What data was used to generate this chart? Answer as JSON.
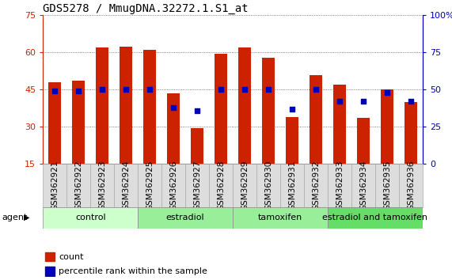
{
  "title": "GDS5278 / MmugDNA.32272.1.S1_at",
  "samples": [
    "GSM362921",
    "GSM362922",
    "GSM362923",
    "GSM362924",
    "GSM362925",
    "GSM362926",
    "GSM362927",
    "GSM362928",
    "GSM362929",
    "GSM362930",
    "GSM362931",
    "GSM362932",
    "GSM362933",
    "GSM362934",
    "GSM362935",
    "GSM362936"
  ],
  "count_values": [
    48.0,
    48.5,
    62.0,
    62.5,
    61.0,
    43.5,
    29.5,
    59.5,
    62.0,
    58.0,
    34.0,
    51.0,
    47.0,
    33.5,
    45.0,
    40.0
  ],
  "percentile_values": [
    49,
    49,
    50,
    50,
    50,
    38,
    36,
    50,
    50,
    50,
    37,
    50,
    42,
    42,
    48,
    42
  ],
  "groups": [
    {
      "label": "control",
      "start": 0,
      "end": 3,
      "color": "#ccffcc"
    },
    {
      "label": "estradiol",
      "start": 4,
      "end": 7,
      "color": "#99ee99"
    },
    {
      "label": "tamoxifen",
      "start": 8,
      "end": 11,
      "color": "#99ee99"
    },
    {
      "label": "estradiol and tamoxifen",
      "start": 12,
      "end": 15,
      "color": "#66dd66"
    }
  ],
  "ymin": 15,
  "ymax": 75,
  "yticks_left": [
    15,
    30,
    45,
    60,
    75
  ],
  "yticks_right_vals": [
    0,
    25,
    50,
    75,
    100
  ],
  "yticks_right_labels": [
    "0",
    "25",
    "50",
    "75",
    "100%"
  ],
  "bar_color": "#cc2200",
  "dot_color": "#0000bb",
  "bar_width": 0.55,
  "dot_size": 22,
  "background_color": "#ffffff",
  "left_axis_color": "#cc2200",
  "right_axis_color": "#0000bb",
  "grid_color": "#555555",
  "title_fontsize": 10,
  "axis_fontsize": 8,
  "tick_label_fontsize": 7.5,
  "group_label_fontsize": 8,
  "agent_label": "agent",
  "legend_count": "count",
  "legend_percentile": "percentile rank within the sample",
  "cell_color": "#dddddd",
  "cell_border_color": "#aaaaaa"
}
